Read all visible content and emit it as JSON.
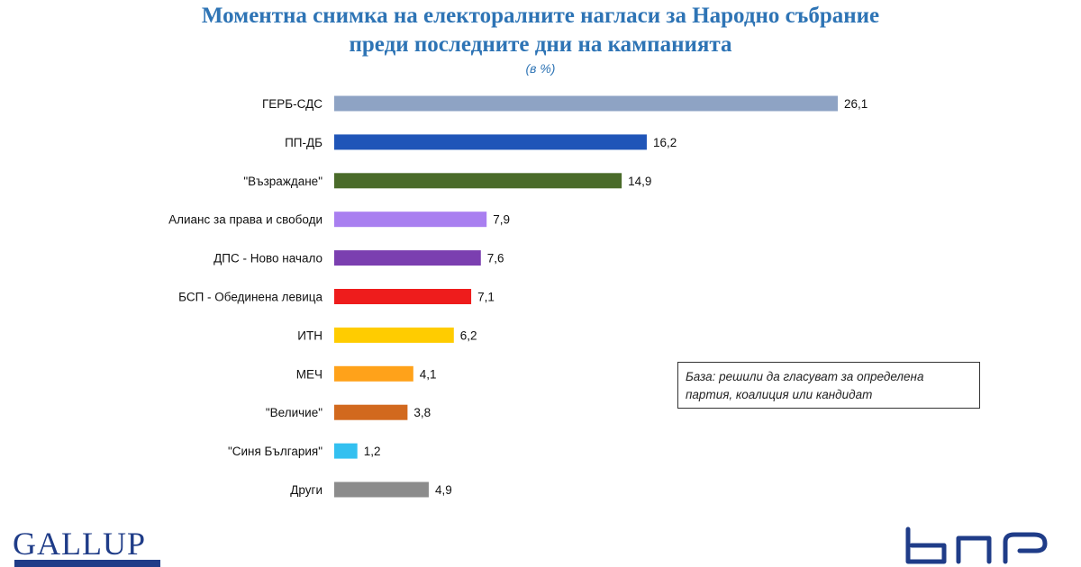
{
  "chart_data": {
    "type": "bar",
    "orientation": "horizontal",
    "title_line1": "Моментна снимка на електоралните нагласи за Народно събрание",
    "title_line2": "преди последните дни на кампанията",
    "subtitle": "(в %)",
    "categories": [
      "ГЕРБ-СДС",
      "ПП-ДБ",
      "\"Възраждане\"",
      "Алианс за права и свободи",
      "ДПС - Ново начало",
      "БСП - Обединена левица",
      "ИТН",
      "МЕЧ",
      "\"Величие\"",
      "\"Синя България\"",
      "Други"
    ],
    "values": [
      26.1,
      16.2,
      14.9,
      7.9,
      7.6,
      7.1,
      6.2,
      4.1,
      3.8,
      1.2,
      4.9
    ],
    "value_labels": [
      "26,1",
      "16,2",
      "14,9",
      "7,9",
      "7,6",
      "7,1",
      "6,2",
      "4,1",
      "3,8",
      "1,2",
      "4,9"
    ],
    "colors": [
      "#8ea3c4",
      "#1f55b8",
      "#4a6b2a",
      "#a97ff0",
      "#7b3fb0",
      "#ee1c1c",
      "#ffcc00",
      "#ffa21a",
      "#d2691e",
      "#33c0f0",
      "#8c8c8c"
    ],
    "xlim": [
      0,
      26.1
    ],
    "grid": false,
    "legend": "none"
  },
  "note": {
    "line1": "База: решили да гласуват за определена",
    "line2": "партия, коалиция или кандидат"
  },
  "logos": {
    "left": "GALLUP",
    "right": "bnr-logo"
  }
}
